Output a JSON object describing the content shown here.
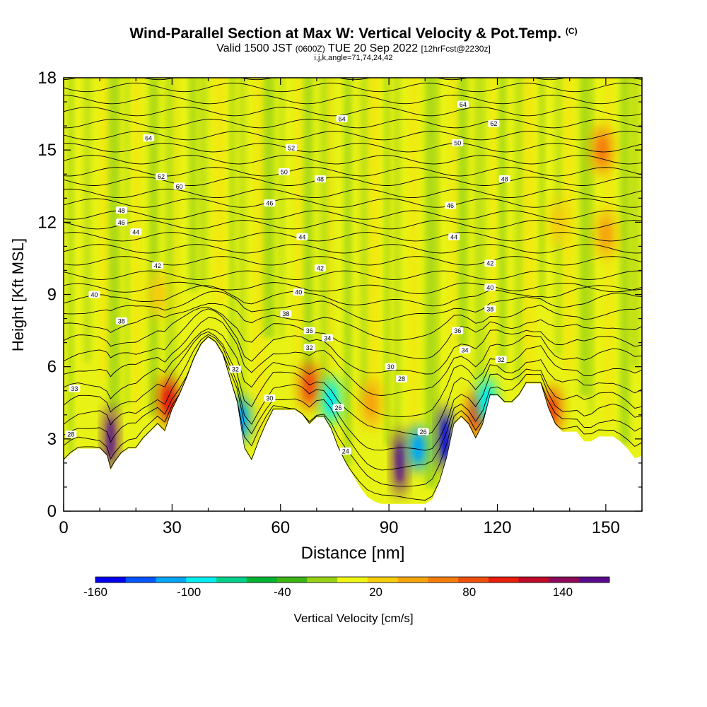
{
  "header": {
    "title": "Wind-Parallel Section at Max W: Vertical Velocity & Pot.Temp.",
    "title_mark": "(C)",
    "valid_pre": "Valid 1500 JST",
    "valid_utc": "(0600Z)",
    "valid_date": "TUE 20 Sep 2022",
    "forecast": "[12hrFcst@2230z]",
    "indices": "i,j,k,angle=71,74,24,42"
  },
  "chart_data": {
    "type": "heatmap",
    "xlabel": "Distance [nm]",
    "ylabel": "Height [Kft MSL]",
    "xlim": [
      0,
      160
    ],
    "ylim": [
      0,
      18
    ],
    "x_ticks": [
      0,
      30,
      60,
      90,
      120,
      150
    ],
    "y_ticks": [
      0,
      3,
      6,
      9,
      12,
      15,
      18
    ],
    "colorbar": {
      "label": "Vertical Velocity [cm/s]",
      "tick_labels": [
        "-160",
        "-100",
        "-40",
        "20",
        "80",
        "140"
      ],
      "tick_values": [
        -160,
        -100,
        -40,
        20,
        80,
        140
      ],
      "range": [
        -160,
        170
      ],
      "colors": [
        "#0000ee",
        "#0055ff",
        "#00a5f5",
        "#00eef0",
        "#00d28c",
        "#00b432",
        "#3cb414",
        "#98d214",
        "#f0f514",
        "#f5cd0a",
        "#f5a50a",
        "#f57d0a",
        "#ee500a",
        "#e61e0a",
        "#be0a28",
        "#8c0a5a",
        "#5a0a8c"
      ]
    },
    "terrain_profile": {
      "x": [
        0,
        2,
        4,
        8,
        10,
        12,
        13,
        14,
        16,
        18,
        20,
        22,
        24,
        26,
        28,
        30,
        32,
        34,
        36,
        38,
        40,
        42,
        44,
        46,
        48,
        50,
        52,
        54,
        56,
        58,
        60,
        62,
        64,
        66,
        68,
        70,
        72,
        74,
        76,
        78,
        80,
        82,
        84,
        86,
        88,
        90,
        92,
        94,
        96,
        98,
        100,
        102,
        104,
        106,
        108,
        110,
        112,
        114,
        116,
        118,
        120,
        122,
        124,
        126,
        128,
        130,
        132,
        134,
        136,
        138,
        140,
        142,
        144,
        146,
        148,
        150,
        152,
        154,
        156,
        158,
        160
      ],
      "y": [
        2.1,
        2.4,
        2.6,
        2.6,
        2.6,
        2.3,
        1.7,
        2.0,
        2.4,
        2.6,
        2.6,
        3.0,
        3.3,
        3.6,
        3.3,
        4.2,
        4.8,
        5.5,
        6.3,
        6.9,
        7.2,
        7.0,
        6.5,
        5.5,
        4.5,
        2.6,
        2.1,
        2.9,
        3.6,
        4.2,
        4.2,
        4.2,
        4.2,
        4.0,
        3.6,
        3.9,
        3.9,
        3.4,
        2.6,
        2.0,
        1.5,
        1.0,
        0.6,
        0.4,
        0.3,
        0.3,
        0.3,
        0.3,
        0.3,
        0.3,
        0.3,
        0.5,
        1.2,
        2.2,
        3.6,
        3.9,
        3.6,
        3.0,
        3.6,
        4.8,
        4.8,
        4.5,
        4.5,
        4.8,
        5.3,
        5.3,
        5.3,
        4.3,
        3.6,
        3.3,
        3.3,
        3.3,
        2.9,
        2.9,
        3.1,
        3.1,
        3.1,
        2.9,
        2.6,
        2.2,
        2.3
      ]
    },
    "vertical_velocity_cells": [
      {
        "x": 13,
        "y": 3.0,
        "w": 155
      },
      {
        "x": 29,
        "y": 4.6,
        "w": 100
      },
      {
        "x": 68,
        "y": 5.2,
        "w": 90
      },
      {
        "x": 93,
        "y": 2.0,
        "w": 165
      },
      {
        "x": 105.5,
        "y": 3.0,
        "w": -160
      },
      {
        "x": 98,
        "y": 2.6,
        "w": -110
      },
      {
        "x": 74,
        "y": 4.6,
        "w": -100
      },
      {
        "x": 49,
        "y": 3.8,
        "w": -110
      },
      {
        "x": 114,
        "y": 4.0,
        "w": 90
      },
      {
        "x": 117,
        "y": 4.6,
        "w": -100
      },
      {
        "x": 135,
        "y": 4.2,
        "w": 90
      },
      {
        "x": 149,
        "y": 15.0,
        "w": 70
      },
      {
        "x": 150,
        "y": 11.5,
        "w": 45
      },
      {
        "x": 137,
        "y": 12.0,
        "w": 30
      },
      {
        "x": 26,
        "y": 9.0,
        "w": 20
      },
      {
        "x": 85,
        "y": 4.5,
        "w": 45
      }
    ],
    "theta_contours": {
      "levels": [
        24,
        26,
        28,
        30,
        32,
        33,
        34,
        36,
        38,
        40,
        42,
        44,
        46,
        48,
        50,
        52,
        54
      ],
      "labels": [
        {
          "text": "64",
          "x": 23.5,
          "y": 15.5
        },
        {
          "text": "62",
          "x": 27,
          "y": 13.9
        },
        {
          "text": "60",
          "x": 32,
          "y": 13.5
        },
        {
          "text": "48",
          "x": 16,
          "y": 12.5
        },
        {
          "text": "46",
          "x": 16,
          "y": 12.0
        },
        {
          "text": "44",
          "x": 20,
          "y": 11.6
        },
        {
          "text": "42",
          "x": 26,
          "y": 10.2
        },
        {
          "text": "40",
          "x": 8.5,
          "y": 9.0
        },
        {
          "text": "38",
          "x": 16,
          "y": 7.9
        },
        {
          "text": "33",
          "x": 3,
          "y": 5.1
        },
        {
          "text": "28",
          "x": 2,
          "y": 3.2
        },
        {
          "text": "32",
          "x": 47.5,
          "y": 5.9
        },
        {
          "text": "30",
          "x": 57,
          "y": 4.7
        },
        {
          "text": "52",
          "x": 63,
          "y": 15.1
        },
        {
          "text": "50",
          "x": 61,
          "y": 14.1
        },
        {
          "text": "48",
          "x": 71,
          "y": 13.8
        },
        {
          "text": "46",
          "x": 57,
          "y": 12.8
        },
        {
          "text": "44",
          "x": 66,
          "y": 11.4
        },
        {
          "text": "42",
          "x": 71,
          "y": 10.1
        },
        {
          "text": "40",
          "x": 65,
          "y": 9.1
        },
        {
          "text": "38",
          "x": 61.5,
          "y": 8.2
        },
        {
          "text": "36",
          "x": 68,
          "y": 7.5
        },
        {
          "text": "34",
          "x": 73,
          "y": 7.2
        },
        {
          "text": "32",
          "x": 68,
          "y": 6.8
        },
        {
          "text": "64",
          "x": 77,
          "y": 16.3
        },
        {
          "text": "26",
          "x": 76,
          "y": 4.3
        },
        {
          "text": "24",
          "x": 78,
          "y": 2.5
        },
        {
          "text": "30",
          "x": 90.5,
          "y": 6.0
        },
        {
          "text": "28",
          "x": 93.5,
          "y": 5.5
        },
        {
          "text": "26",
          "x": 99.5,
          "y": 3.3
        },
        {
          "text": "64",
          "x": 110.5,
          "y": 16.9
        },
        {
          "text": "62",
          "x": 119,
          "y": 16.1
        },
        {
          "text": "50",
          "x": 109,
          "y": 15.3
        },
        {
          "text": "48",
          "x": 122,
          "y": 13.8
        },
        {
          "text": "46",
          "x": 107,
          "y": 12.7
        },
        {
          "text": "44",
          "x": 108,
          "y": 11.4
        },
        {
          "text": "42",
          "x": 118,
          "y": 10.3
        },
        {
          "text": "40",
          "x": 118,
          "y": 9.3
        },
        {
          "text": "38",
          "x": 118,
          "y": 8.4
        },
        {
          "text": "36",
          "x": 109,
          "y": 7.5
        },
        {
          "text": "34",
          "x": 111,
          "y": 6.7
        },
        {
          "text": "32",
          "x": 121,
          "y": 6.3
        }
      ]
    }
  }
}
